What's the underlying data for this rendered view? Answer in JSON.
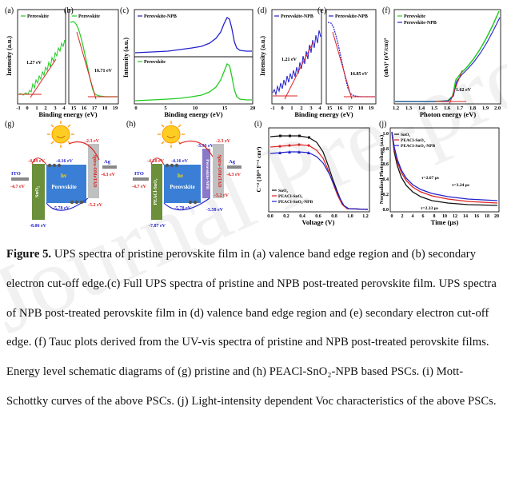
{
  "watermark": "Journal Pre-proof",
  "caption": {
    "label": "Figure 5.",
    "text": " UPS spectra of pristine perovskite film in (a) valence band edge region and (b) secondary electron cut-off edge.(c) Full UPS spectra of pristine and NPB post-treated perovskite film. UPS spectra of NPB post-treated perovskite film in (d) valence band edge region and (e) secondary electron cut-off edge. (f) Tauc plots derived from the UV-vis spectra of pristine and NPB post-treated perovskite films. Energy level schematic diagrams of (g) pristine and (h) PEACl-SnO₂-NPB based PSCs. (i) Mott-Schottky curves of the above PSCs. (j) Light-intensity dependent Voc characteristics of the above PSCs."
  },
  "colors": {
    "green": "#22cc22",
    "blue": "#2222cc",
    "red": "#dd2222",
    "black": "#111111",
    "orange": "#ff8800"
  },
  "panels": {
    "a": {
      "label": "(a)",
      "legend": "Perovskite",
      "annot": "1.27 eV",
      "ylabel": "Intensity (a.u.)",
      "ticks": [
        "-1",
        "0",
        "1",
        "2",
        "3",
        "4"
      ]
    },
    "b": {
      "label": "(b)",
      "legend": "Perovskite",
      "annot": "16.71 eV",
      "ticks": [
        "15",
        "16",
        "17",
        "18",
        "19"
      ]
    },
    "c": {
      "label": "(c)",
      "legend_top": "Perovskite-NPB",
      "legend_bottom": "Perovskite",
      "ylabel": "Intensity (a.u.)",
      "xlabel": "Binding energy (eV)",
      "ticks": [
        "0",
        "5",
        "10",
        "15",
        "20"
      ]
    },
    "ab_xlabel": "Binding energy (eV)",
    "d": {
      "label": "(d)",
      "legend": "Perovskite-NPB",
      "annot": "1.21 eV",
      "ylabel": "Intensity (a.u.)",
      "ticks": [
        "-1",
        "0",
        "1",
        "2",
        "3",
        "4"
      ]
    },
    "e": {
      "label": "(e)",
      "legend": "Perovskite-NPB",
      "annot": "16.85 eV",
      "ticks": [
        "15",
        "16",
        "17",
        "18",
        "19"
      ]
    },
    "de_xlabel": "Binding energy (eV)",
    "f": {
      "label": "(f)",
      "legend": [
        "Perovskite",
        "Perovskite-NPB"
      ],
      "annot": "1.62 eV",
      "ylabel": "(αhν)² (eV/cm)²",
      "xlabel": "Photon energy (eV)",
      "ticks": [
        "1.2",
        "1.3",
        "1.4",
        "1.5",
        "1.6",
        "1.7",
        "1.8",
        "1.9",
        "2.0"
      ]
    },
    "g": {
      "label": "(g)",
      "ito": "ITO",
      "ito_e": "-4.7 eV",
      "sno2": "SnO₂",
      "sno2_cb": "-4.29 eV",
      "sno2_vb": "-8.06 eV",
      "pvk": "Perovskite",
      "pvk_cb": "-4.16 eV",
      "pvk_vb": "-5.78 eV",
      "hv": "hν",
      "spiro": "Spiro-OMeTAD",
      "spiro_h": "-2.3 eV",
      "spiro_l": "-5.2 eV",
      "ag": "Ag",
      "ag_e": "-4.3 eV"
    },
    "h": {
      "label": "(h)",
      "ito": "ITO",
      "ito_e": "-4.7 eV",
      "sno2": "PEACl-SnO₂",
      "sno2_cb": "-4.18 eV",
      "sno2_vb": "-7.87 eV",
      "pvk": "Perovskite",
      "pvk_cb": "-4.16 eV",
      "pvk_vb": "-5.78 eV",
      "npb": "Perovskite-NPB",
      "npb_cb": "-3.96 eV",
      "npb_vb": "-5.58 eV",
      "hv": "hν",
      "spiro": "Spiro-OMeTAD",
      "spiro_h": "-2.3 eV",
      "spiro_l": "-5.2 eV",
      "ag": "Ag",
      "ag_e": "-4.3 eV"
    },
    "i": {
      "label": "(i)",
      "legend": [
        "SnO₂",
        "PEACl-SnO₂",
        "PEACl-SnO₂-NPB"
      ],
      "ylabel": "C⁻² (10¹⁵ F⁻² cm⁴)",
      "xlabel": "Voltage (V)",
      "ticks": [
        "0.0",
        "0.2",
        "0.4",
        "0.6",
        "0.8",
        "1.0",
        "1.2"
      ]
    },
    "j": {
      "label": "(j)",
      "legend": [
        "SnO₂",
        "PEACl-SnO₂",
        "PEACl-SnO₂-NPB"
      ],
      "annots": [
        "τ=2.67 μs",
        "τ=3.24 μs",
        "τ=2.33 μs"
      ],
      "ylabel": "Normalized Photovoltage (a.u.)",
      "xlabel": "Time (μs)",
      "yticks": [
        "0.0",
        "0.2",
        "0.4",
        "0.6",
        "0.8",
        "1.0"
      ],
      "xticks": [
        "0",
        "2",
        "4",
        "6",
        "8",
        "10",
        "12",
        "14",
        "16",
        "18",
        "20"
      ]
    }
  }
}
